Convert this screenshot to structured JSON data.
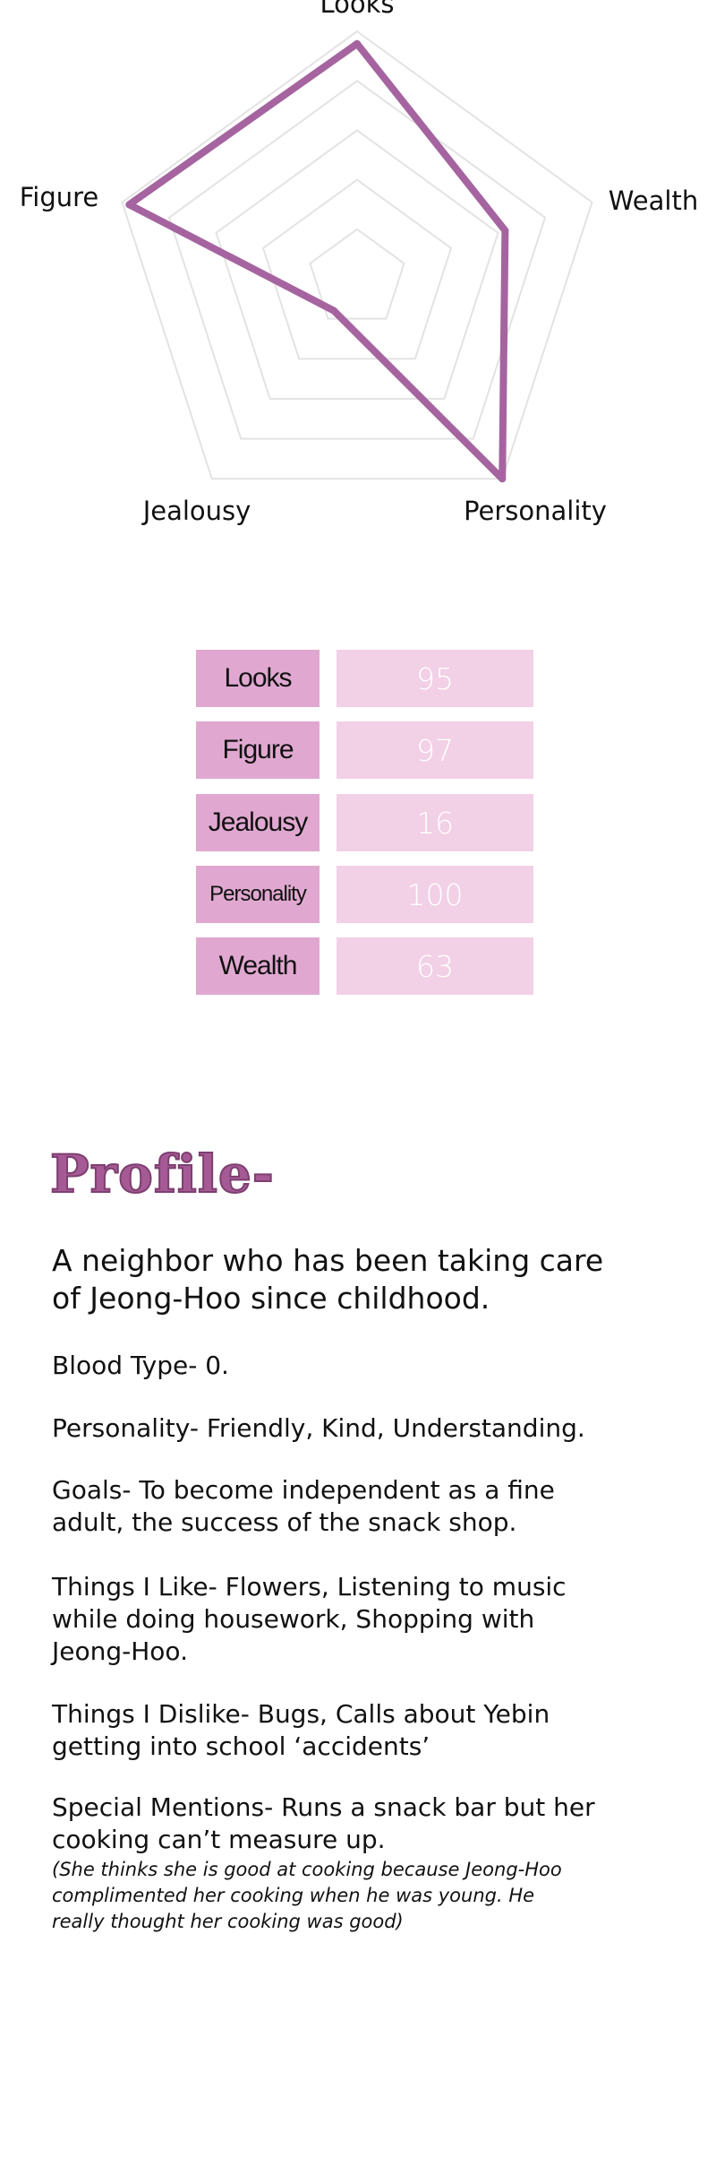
{
  "chart_data": {
    "type": "radar",
    "axes": [
      "Looks",
      "Wealth",
      "Personality",
      "Jealousy",
      "Figure"
    ],
    "values": [
      95,
      63,
      100,
      16,
      97
    ],
    "range": [
      0,
      100
    ],
    "grid_rings": 5,
    "grid": true,
    "series_color": "#a564a0",
    "grid_color": "#e3e3e3"
  },
  "stats_table": [
    {
      "label": "Looks",
      "value": "95"
    },
    {
      "label": "Figure",
      "value": "97"
    },
    {
      "label": "Jealousy",
      "value": "16"
    },
    {
      "label": "Personality",
      "value": "100"
    },
    {
      "label": "Wealth",
      "value": "63"
    }
  ],
  "colors": {
    "label_bg": "#e0a8d0",
    "value_bg": "#f2d0e6",
    "title": "#a65a95"
  },
  "profile": {
    "title": "Profile-",
    "lead": [
      "A neighbor who has been taking care",
      "of Jeong-Hoo since childhood."
    ],
    "blood_type": [
      "Blood Type- 0."
    ],
    "personality": [
      "Personality- Friendly, Kind, Understanding."
    ],
    "goals": [
      "Goals- To become independent as a fine",
      "adult, the success of the snack shop."
    ],
    "likes": [
      "Things I Like- Flowers, Listening to music",
      "while doing housework, Shopping with",
      "Jeong-Hoo."
    ],
    "dislikes": [
      "Things I Dislike- Bugs, Calls about Yebin",
      "getting into school ‘accidents’"
    ],
    "special": [
      "Special Mentions- Runs a snack bar but her",
      "cooking can’t measure up."
    ],
    "note": [
      "(She thinks she is good at cooking because Jeong-Hoo",
      "complimented her cooking when he was young. He",
      "really thought her cooking was good)"
    ]
  }
}
